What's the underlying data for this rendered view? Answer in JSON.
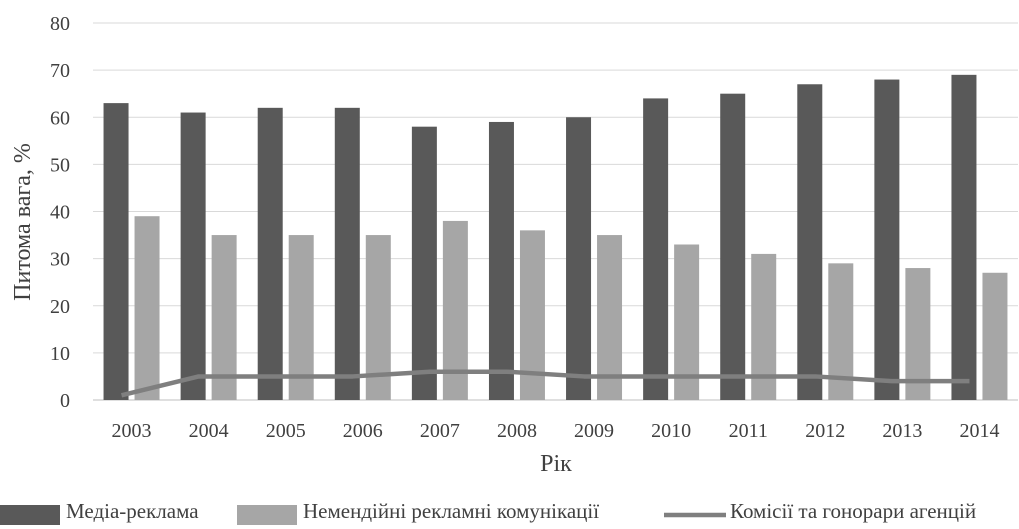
{
  "chart_data": {
    "type": "bar",
    "title": "",
    "xlabel": "Рік",
    "ylabel": "Питома вага, %",
    "ylim": [
      0,
      80
    ],
    "yticks": [
      0,
      10,
      20,
      30,
      40,
      50,
      60,
      70,
      80
    ],
    "grid": true,
    "legend_position": "bottom",
    "categories": [
      "2003",
      "2004",
      "2005",
      "2006",
      "2007",
      "2008",
      "2009",
      "2010",
      "2011",
      "2012",
      "2013",
      "2014"
    ],
    "series": [
      {
        "name": "Медіа-реклама",
        "kind": "bar",
        "color": "#595959",
        "values": [
          63,
          61,
          62,
          62,
          58,
          59,
          60,
          64,
          65,
          67,
          68,
          69
        ]
      },
      {
        "name": "Немендійні  рекламні комунікації",
        "kind": "bar",
        "color": "#a6a6a6",
        "values": [
          39,
          35,
          35,
          35,
          38,
          36,
          35,
          33,
          31,
          29,
          28,
          27
        ]
      },
      {
        "name": "Комісії та гонорари агенцій",
        "kind": "line",
        "color": "#7f7f7f",
        "values": [
          1,
          5,
          5,
          5,
          6,
          6,
          5,
          5,
          5,
          5,
          4,
          4
        ]
      }
    ]
  }
}
